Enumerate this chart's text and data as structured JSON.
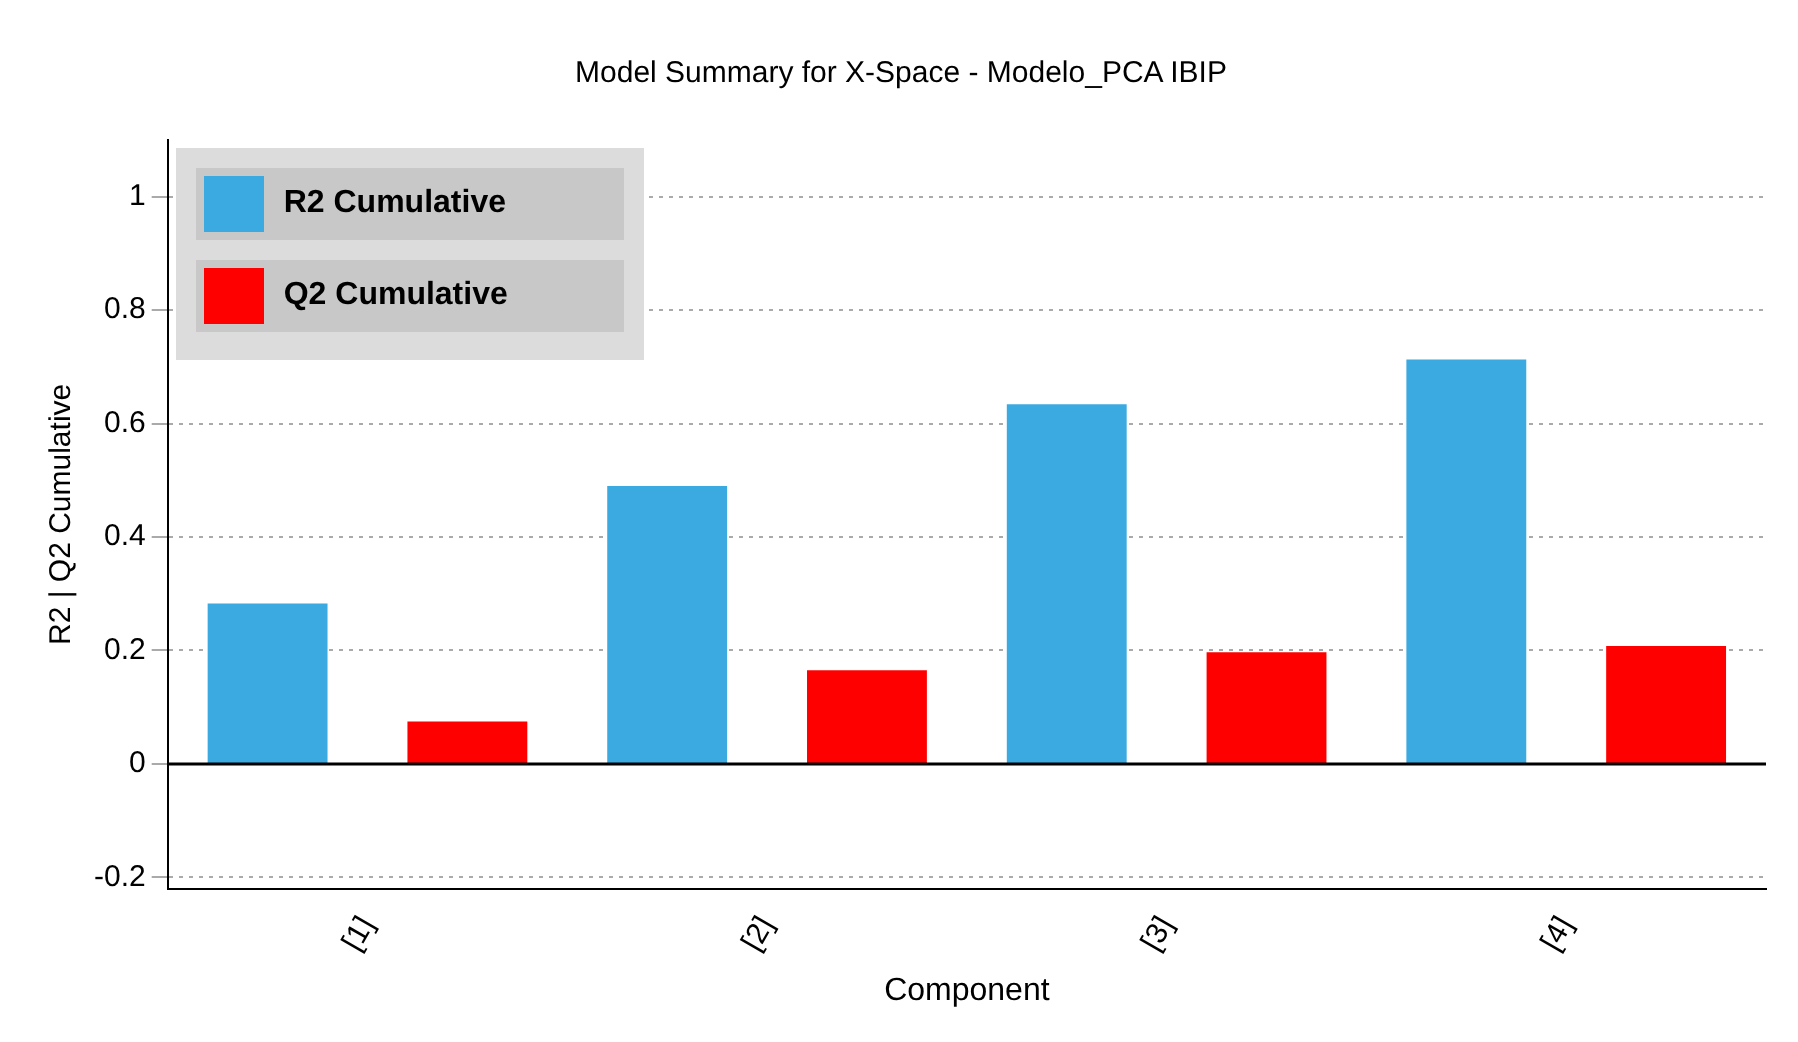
{
  "chart_data": {
    "type": "bar",
    "title": "Model Summary for X-Space - Modelo_PCA IBIP",
    "xlabel": "Component",
    "ylabel": "R2 | Q2 Cumulative",
    "categories": [
      "[1]",
      "[2]",
      "[3]",
      "[4]"
    ],
    "series": [
      {
        "name": "R2 Cumulative",
        "color": "#3aaae0",
        "values": [
          0.283,
          0.49,
          0.634,
          0.713
        ]
      },
      {
        "name": "Q2 Cumulative",
        "color": "#ff0000",
        "values": [
          0.075,
          0.165,
          0.197,
          0.208
        ]
      }
    ],
    "ylim": [
      -0.22,
      1.1
    ],
    "yticks": [
      -0.2,
      0,
      0.2,
      0.4,
      0.6,
      0.8,
      1
    ],
    "grid": "y",
    "legend": "top left",
    "ref_lines": [
      {
        "axis": "y",
        "value": 0,
        "color": "#000000",
        "line_style": "solid"
      }
    ]
  }
}
